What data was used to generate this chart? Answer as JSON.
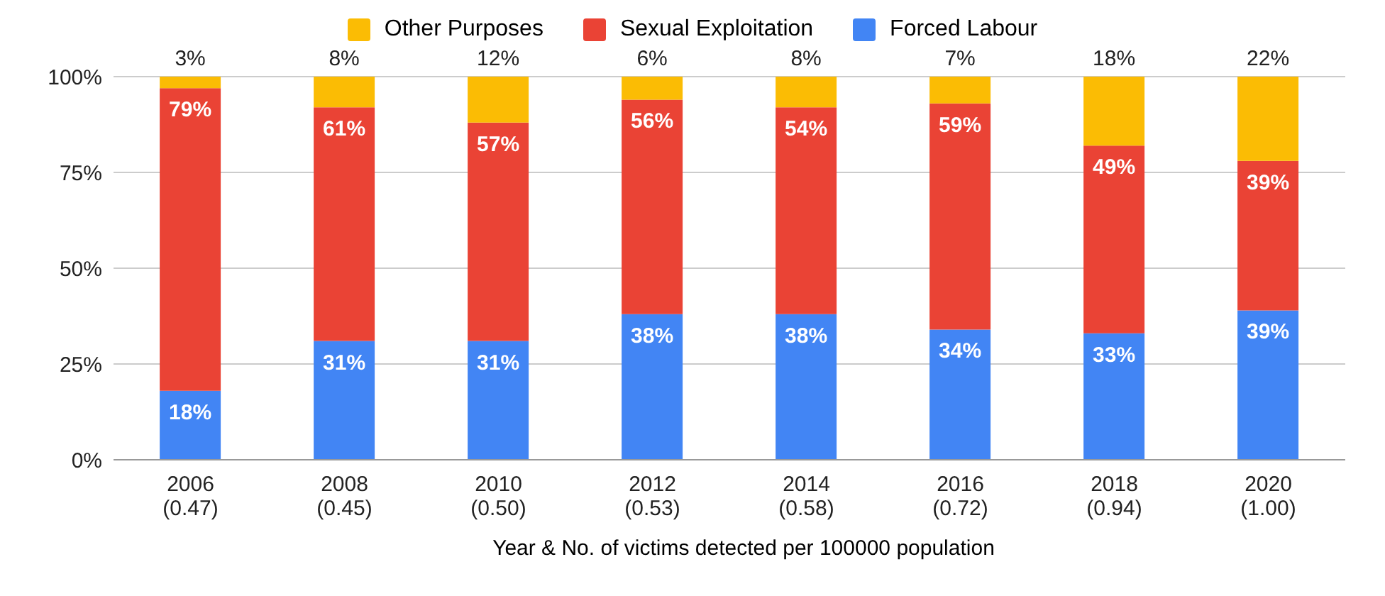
{
  "chart_data": {
    "type": "bar",
    "stacked": true,
    "xlabel": "Year & No. of victims detected per 100000 population",
    "categories": [
      "2006\n(0.47)",
      "2008\n(0.45)",
      "2010\n(0.50)",
      "2012\n(0.53)",
      "2014\n(0.58)",
      "2016\n(0.72)",
      "2018\n(0.94)",
      "2020\n(1.00)"
    ],
    "series": [
      {
        "name": "Forced Labour",
        "color": "#4285f4",
        "values": [
          18,
          31,
          31,
          38,
          38,
          34,
          33,
          39
        ],
        "value_labels": [
          "18%",
          "31%",
          "31%",
          "38%",
          "38%",
          "34%",
          "33%",
          "39%"
        ]
      },
      {
        "name": "Sexual Exploitation",
        "color": "#ea4335",
        "values": [
          79,
          61,
          57,
          56,
          54,
          59,
          49,
          39
        ],
        "value_labels": [
          "79%",
          "61%",
          "57%",
          "56%",
          "54%",
          "59%",
          "49%",
          "39%"
        ]
      },
      {
        "name": "Other Purposes",
        "color": "#fbbc04",
        "values": [
          3,
          8,
          12,
          6,
          8,
          7,
          18,
          22
        ],
        "value_labels": [
          "3%",
          "8%",
          "12%",
          "6%",
          "8%",
          "7%",
          "18%",
          "22%"
        ]
      }
    ],
    "ylim": [
      0,
      100
    ],
    "yticks": [
      {
        "value": 0,
        "label": "0%"
      },
      {
        "value": 25,
        "label": "25%"
      },
      {
        "value": 50,
        "label": "50%"
      },
      {
        "value": 75,
        "label": "75%"
      },
      {
        "value": 100,
        "label": "100%"
      }
    ],
    "grid": "y",
    "legend": "top"
  }
}
